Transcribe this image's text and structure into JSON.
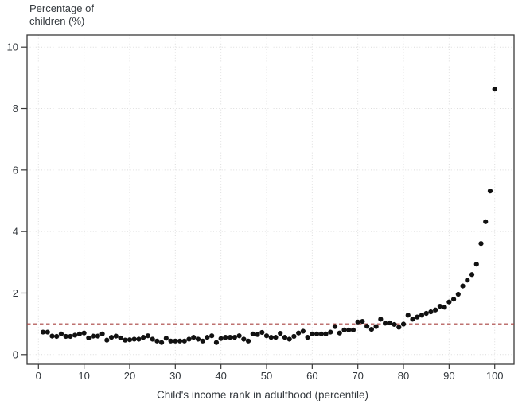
{
  "title": {
    "line1": "Percentage of",
    "line2": "children (%)"
  },
  "x_axis": {
    "label": "Child's income rank in adulthood (percentile)"
  },
  "colors": {
    "point": "#111111",
    "grid": "#dcdcdc",
    "frame": "#3a3a3a",
    "tick": "#3a3a3a",
    "reference": "#a94441",
    "text": "#33383d",
    "background": "#ffffff"
  },
  "chart_data": {
    "type": "scatter",
    "title": "Percentage of children (%)",
    "xlabel": "Child's income rank in adulthood (percentile)",
    "ylabel": "Percentage of children (%)",
    "xlim": [
      -2.5,
      104.2
    ],
    "ylim": [
      -0.32,
      10.4
    ],
    "x_ticks": [
      0,
      10,
      20,
      30,
      40,
      50,
      60,
      70,
      80,
      90,
      100
    ],
    "y_ticks": [
      0,
      2,
      4,
      6,
      8,
      10
    ],
    "grid": "dotted gridlines at every tick, both axes",
    "legend": "none",
    "reference_line": {
      "y": 1.0,
      "style": "dashed",
      "color": "#a94441"
    },
    "series": [
      {
        "name": "children",
        "marker": "filled-circle",
        "x": [
          1,
          2,
          3,
          4,
          5,
          6,
          7,
          8,
          9,
          10,
          11,
          12,
          13,
          14,
          15,
          16,
          17,
          18,
          19,
          20,
          21,
          22,
          23,
          24,
          25,
          26,
          27,
          28,
          29,
          30,
          31,
          32,
          33,
          34,
          35,
          36,
          37,
          38,
          39,
          40,
          41,
          42,
          43,
          44,
          45,
          46,
          47,
          48,
          49,
          50,
          51,
          52,
          53,
          54,
          55,
          56,
          57,
          58,
          59,
          60,
          61,
          62,
          63,
          64,
          65,
          66,
          67,
          68,
          69,
          70,
          71,
          72,
          73,
          74,
          75,
          76,
          77,
          78,
          79,
          80,
          81,
          82,
          83,
          84,
          85,
          86,
          87,
          88,
          89,
          90,
          91,
          92,
          93,
          94,
          95,
          96,
          97,
          98,
          99,
          100
        ],
        "y": [
          0.73,
          0.73,
          0.6,
          0.59,
          0.67,
          0.59,
          0.59,
          0.63,
          0.67,
          0.7,
          0.54,
          0.6,
          0.6,
          0.67,
          0.47,
          0.56,
          0.6,
          0.54,
          0.47,
          0.48,
          0.5,
          0.5,
          0.56,
          0.61,
          0.5,
          0.44,
          0.39,
          0.53,
          0.44,
          0.44,
          0.44,
          0.44,
          0.5,
          0.56,
          0.5,
          0.44,
          0.56,
          0.61,
          0.39,
          0.52,
          0.56,
          0.56,
          0.56,
          0.61,
          0.5,
          0.44,
          0.67,
          0.65,
          0.72,
          0.61,
          0.56,
          0.56,
          0.69,
          0.56,
          0.5,
          0.59,
          0.7,
          0.76,
          0.56,
          0.67,
          0.67,
          0.67,
          0.67,
          0.73,
          0.91,
          0.7,
          0.8,
          0.8,
          0.8,
          1.06,
          1.08,
          0.92,
          0.82,
          0.91,
          1.15,
          1.02,
          1.03,
          0.98,
          0.89,
          0.99,
          1.28,
          1.15,
          1.22,
          1.28,
          1.34,
          1.39,
          1.45,
          1.57,
          1.54,
          1.71,
          1.8,
          1.96,
          2.23,
          2.42,
          2.6,
          2.94,
          3.61,
          4.32,
          5.32,
          8.63
        ]
      }
    ]
  }
}
